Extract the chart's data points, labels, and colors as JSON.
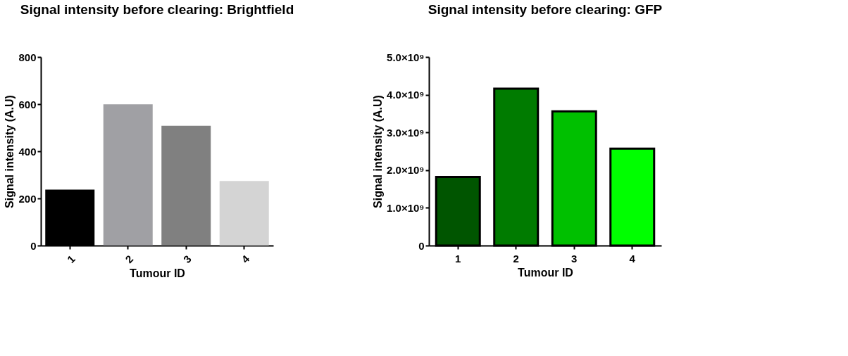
{
  "chart_data": [
    {
      "type": "bar",
      "title": "Signal intensity before clearing: Brightfield",
      "xlabel": "Tumour ID",
      "ylabel": "Signal intensity (A.U)",
      "categories": [
        "1",
        "2",
        "3",
        "4"
      ],
      "values": [
        237,
        599,
        508,
        274
      ],
      "colors": [
        "#000000",
        "#a0a0a4",
        "#808080",
        "#d4d4d4"
      ],
      "ylim": [
        0,
        800
      ],
      "yticks": [
        0,
        200,
        400,
        600,
        800
      ],
      "grid": false,
      "legend": false
    },
    {
      "type": "bar",
      "title": "Signal intensity before clearing: GFP",
      "xlabel": "Tumour ID",
      "ylabel": "Signal intensity (A.U)",
      "categories": [
        "1",
        "2",
        "3",
        "4"
      ],
      "values": [
        1820000000,
        4160000000,
        3560000000,
        2570000000
      ],
      "colors": [
        "#005500",
        "#007b00",
        "#00c000",
        "#00ff00"
      ],
      "ylim": [
        0,
        5000000000
      ],
      "yticks": [
        0,
        {
          "value": 1000000000,
          "label": "1.0×10⁹"
        },
        {
          "value": 2000000000,
          "label": "2.0×10⁹"
        },
        {
          "value": 3000000000,
          "label": "3.0×10⁹"
        },
        {
          "value": 4000000000,
          "label": "4.0×10⁹"
        },
        {
          "value": 5000000000,
          "label": "5.0×10⁹"
        }
      ],
      "grid": false,
      "legend": false
    }
  ]
}
